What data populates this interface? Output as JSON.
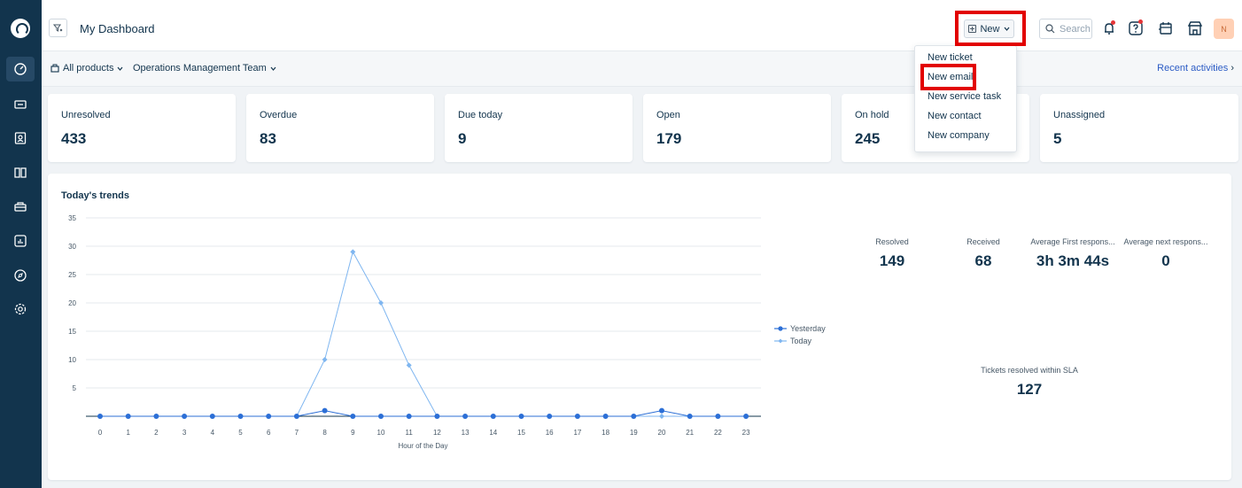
{
  "header": {
    "title": "My Dashboard",
    "new_label": "New",
    "search_placeholder": "Search",
    "avatar_initial": "N"
  },
  "filters": {
    "products": "All products",
    "team": "Operations Management Team",
    "recent": "Recent activities"
  },
  "cards": [
    {
      "label": "Unresolved",
      "value": "433"
    },
    {
      "label": "Overdue",
      "value": "83"
    },
    {
      "label": "Due today",
      "value": "9"
    },
    {
      "label": "Open",
      "value": "179"
    },
    {
      "label": "On hold",
      "value": "245"
    },
    {
      "label": "Unassigned",
      "value": "5"
    }
  ],
  "new_menu": [
    "New ticket",
    "New email",
    "New service task",
    "New contact",
    "New company"
  ],
  "trends": {
    "title": "Today's trends",
    "legend_yesterday": "Yesterday",
    "legend_today": "Today",
    "metrics": [
      {
        "label": "Resolved",
        "value": "149"
      },
      {
        "label": "Received",
        "value": "68"
      },
      {
        "label": "Average First respons...",
        "value": "3h 3m 44s"
      },
      {
        "label": "Average next respons...",
        "value": "0"
      }
    ],
    "sla": {
      "label": "Tickets resolved within SLA",
      "value": "127"
    }
  },
  "chart_data": {
    "type": "line",
    "xlabel": "Hour of the Day",
    "ylabel": "",
    "x": [
      0,
      1,
      2,
      3,
      4,
      5,
      6,
      7,
      8,
      9,
      10,
      11,
      12,
      13,
      14,
      15,
      16,
      17,
      18,
      19,
      20,
      21,
      22,
      23
    ],
    "yticks": [
      5,
      10,
      15,
      20,
      25,
      30,
      35
    ],
    "ylim": [
      0,
      35
    ],
    "legend_position": "right",
    "series": [
      {
        "name": "Yesterday",
        "color": "#2c6fd6",
        "values": [
          0,
          0,
          0,
          0,
          0,
          0,
          0,
          0,
          1,
          0,
          0,
          0,
          0,
          0,
          0,
          0,
          0,
          0,
          0,
          0,
          1,
          0,
          0,
          0
        ]
      },
      {
        "name": "Today",
        "color": "#7fb6f0",
        "values": [
          0,
          0,
          0,
          0,
          0,
          0,
          0,
          0,
          10,
          29,
          20,
          9,
          0,
          0,
          0,
          0,
          0,
          0,
          0,
          0,
          0,
          0,
          0,
          0
        ]
      }
    ]
  },
  "colors": {
    "sidebar": "#12344d",
    "accent": "#2c5cc5",
    "highlight": "#e20000"
  }
}
